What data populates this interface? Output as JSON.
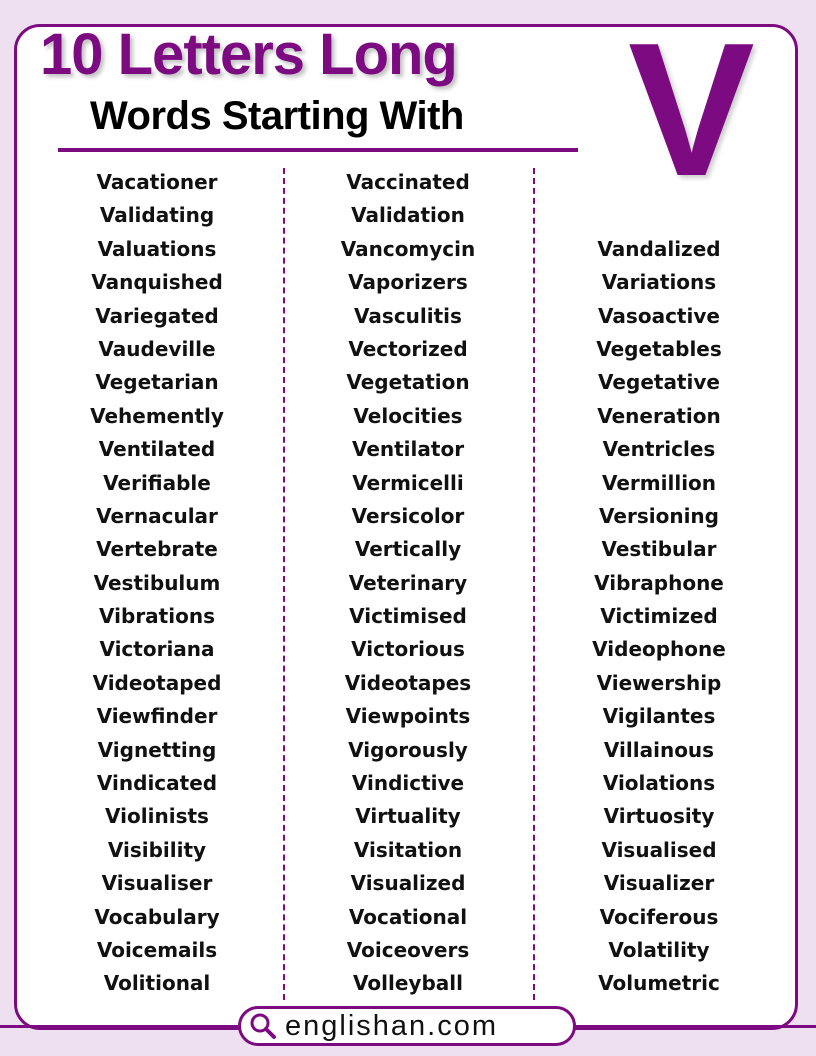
{
  "header": {
    "title_line1": "10 Letters Long",
    "title_line2": "Words Starting With",
    "letter": "V"
  },
  "columns": [
    [
      "Vacationer",
      "Validating",
      "Valuations",
      "Vanquished",
      "Variegated",
      "Vaudeville",
      "Vegetarian",
      "Vehemently",
      "Ventilated",
      "Verifiable",
      "Vernacular",
      "Vertebrate",
      "Vestibulum",
      "Vibrations",
      "Victoriana",
      "Videotaped",
      "Viewfinder",
      "Vignetting",
      "Vindicated",
      "Violinists",
      "Visibility",
      "Visualiser",
      "Vocabulary",
      "Voicemails",
      "Volitional"
    ],
    [
      "Vaccinated",
      "Validation",
      "Vancomycin",
      "Vaporizers",
      "Vasculitis",
      "Vectorized",
      "Vegetation",
      "Velocities",
      "Ventilator",
      "Vermicelli",
      "Versicolor",
      "Vertically",
      "Veterinary",
      "Victimised",
      "Victorious",
      "Videotapes",
      "Viewpoints",
      "Vigorously",
      "Vindictive",
      "Virtuality",
      "Visitation",
      "Visualized",
      "Vocational",
      "Voiceovers",
      "Volleyball"
    ],
    [
      "Vandalized",
      "Variations",
      "Vasoactive",
      "Vegetables",
      "Vegetative",
      "Veneration",
      "Ventricles",
      "Vermillion",
      "Versioning",
      "Vestibular",
      "Vibraphone",
      "Victimized",
      "Videophone",
      "Viewership",
      "Vigilantes",
      "Villainous",
      "Violations",
      "Virtuosity",
      "Visualised",
      "Visualizer",
      "Vociferous",
      "Volatility",
      "Volumetric"
    ]
  ],
  "footer": {
    "site": "englishan.com",
    "icon": "search-icon"
  },
  "colors": {
    "accent": "#7c0a80",
    "background": "#efe0f1"
  }
}
